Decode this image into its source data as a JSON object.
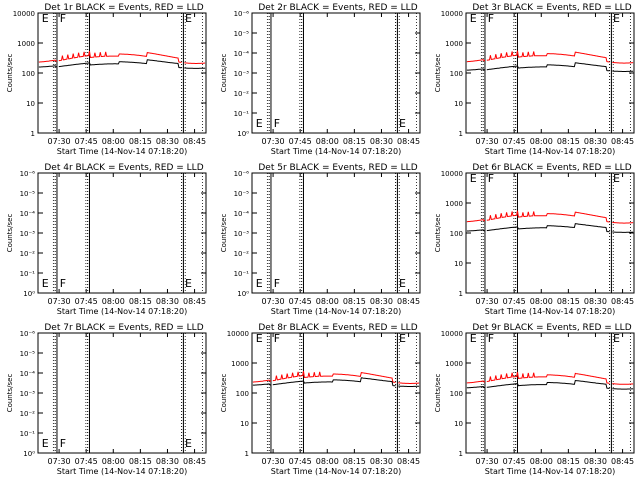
{
  "figure": {
    "background": "#ffffff"
  },
  "colors": {
    "events": "#000000",
    "lld": "#ff0000",
    "axis": "#000000"
  },
  "chart_data": [
    {
      "panel": 1,
      "type": "line",
      "title": "Det 1r BLACK = Events, RED = LLD",
      "ylabel": "Counts/sec",
      "xlabel": "Start Time (14-Nov-14 07:18:20)",
      "yscale": "log",
      "ylim": [
        1,
        10000
      ],
      "yticks": [
        "1",
        "10",
        "100",
        "1000",
        "10000"
      ],
      "xticks": [
        "07:30",
        "07:45",
        "08:00",
        "08:15",
        "08:30",
        "08:45"
      ],
      "xlim_minutes": [
        0,
        93
      ],
      "flags": [
        "E",
        "F",
        "E"
      ],
      "has_data": true,
      "lld_level": 320,
      "events_level": 190,
      "spike_segment": 1
    },
    {
      "panel": 2,
      "type": "line",
      "title": "Det 2r BLACK = Events, RED = LLD",
      "ylabel": "Counts/sec",
      "xlabel": "Start Time (14-Nov-14 07:18:20)",
      "yscale": "log",
      "ylim": [
        1,
        1000000
      ],
      "yticks": [
        "10⁰",
        "10⁻¹",
        "10⁻²",
        "10⁻³",
        "10⁻⁴",
        "10⁻⁵",
        "10⁻⁶"
      ],
      "xticks": [
        "07:30",
        "07:45",
        "08:00",
        "08:15",
        "08:30",
        "08:45"
      ],
      "xlim_minutes": [
        0,
        93
      ],
      "flags": [
        "E",
        "F",
        "E"
      ],
      "has_data": false
    },
    {
      "panel": 3,
      "type": "line",
      "title": "Det 3r BLACK = Events, RED = LLD",
      "ylabel": "Counts/sec",
      "xlabel": "Start Time (14-Nov-14 07:18:20)",
      "yscale": "log",
      "ylim": [
        1,
        10000
      ],
      "yticks": [
        "1",
        "10",
        "100",
        "1000",
        "10000"
      ],
      "xticks": [
        "07:30",
        "07:45",
        "08:00",
        "08:15",
        "08:30",
        "08:45"
      ],
      "xlim_minutes": [
        0,
        93
      ],
      "flags": [
        "E",
        "F",
        "E"
      ],
      "has_data": true,
      "lld_level": 330,
      "events_level": 150,
      "spike_segment": 1
    },
    {
      "panel": 4,
      "type": "line",
      "title": "Det 4r BLACK = Events, RED = LLD",
      "ylabel": "Counts/sec",
      "xlabel": "Start Time (14-Nov-14 07:18:20)",
      "yscale": "log",
      "ylim": [
        1,
        1000000
      ],
      "yticks": [
        "10⁰",
        "10⁻¹",
        "10⁻²",
        "10⁻³",
        "10⁻⁴",
        "10⁻⁵",
        "10⁻⁶"
      ],
      "xticks": [
        "07:30",
        "07:45",
        "08:00",
        "08:15",
        "08:30",
        "08:45"
      ],
      "xlim_minutes": [
        0,
        93
      ],
      "flags": [
        "E",
        "F",
        "E"
      ],
      "has_data": false
    },
    {
      "panel": 5,
      "type": "line",
      "title": "Det 5r BLACK = Events, RED = LLD",
      "ylabel": "Counts/sec",
      "xlabel": "Start Time (14-Nov-14 07:18:20)",
      "yscale": "log",
      "ylim": [
        1,
        1000000
      ],
      "yticks": [
        "10⁰",
        "10⁻¹",
        "10⁻²",
        "10⁻³",
        "10⁻⁴",
        "10⁻⁵",
        "10⁻⁶"
      ],
      "xticks": [
        "07:30",
        "07:45",
        "08:00",
        "08:15",
        "08:30",
        "08:45"
      ],
      "xlim_minutes": [
        0,
        93
      ],
      "flags": [
        "E",
        "F",
        "E"
      ],
      "has_data": false
    },
    {
      "panel": 6,
      "type": "line",
      "title": "Det 6r BLACK = Events, RED = LLD",
      "ylabel": "Counts/sec",
      "xlabel": "Start Time (14-Nov-14 07:18:20)",
      "yscale": "log",
      "ylim": [
        1,
        10000
      ],
      "yticks": [
        "1",
        "10",
        "100",
        "1000",
        "10000"
      ],
      "xticks": [
        "07:30",
        "07:45",
        "08:00",
        "08:15",
        "08:30",
        "08:45"
      ],
      "xlim_minutes": [
        0,
        93
      ],
      "flags": [
        "E",
        "F",
        "E"
      ],
      "has_data": true,
      "lld_level": 330,
      "events_level": 140,
      "spike_segment": 1
    },
    {
      "panel": 7,
      "type": "line",
      "title": "Det 7r BLACK = Events, RED = LLD",
      "ylabel": "Counts/sec",
      "xlabel": "Start Time (14-Nov-14 07:18:20)",
      "yscale": "log",
      "ylim": [
        1,
        1000000
      ],
      "yticks": [
        "10⁰",
        "10⁻¹",
        "10⁻²",
        "10⁻³",
        "10⁻⁴",
        "10⁻⁵",
        "10⁻⁶"
      ],
      "xticks": [
        "07:30",
        "07:45",
        "08:00",
        "08:15",
        "08:30",
        "08:45"
      ],
      "xlim_minutes": [
        0,
        93
      ],
      "flags": [
        "E",
        "F",
        "E"
      ],
      "has_data": false
    },
    {
      "panel": 8,
      "type": "line",
      "title": "Det 8r BLACK = Events, RED = LLD",
      "ylabel": "Counts/sec",
      "xlabel": "Start Time (14-Nov-14 07:18:20)",
      "yscale": "log",
      "ylim": [
        1,
        10000
      ],
      "yticks": [
        "1",
        "10",
        "100",
        "1000",
        "10000"
      ],
      "xticks": [
        "07:30",
        "07:45",
        "08:00",
        "08:15",
        "08:30",
        "08:45"
      ],
      "xlim_minutes": [
        0,
        93
      ],
      "flags": [
        "E",
        "F",
        "E"
      ],
      "has_data": true,
      "lld_level": 320,
      "events_level": 220,
      "spike_segment": 1
    },
    {
      "panel": 9,
      "type": "line",
      "title": "Det 9r BLACK = Events, RED = LLD",
      "ylabel": "Counts/sec",
      "xlabel": "Start Time (14-Nov-14 07:18:20)",
      "yscale": "log",
      "ylim": [
        1,
        10000
      ],
      "yticks": [
        "1",
        "10",
        "100",
        "1000",
        "10000"
      ],
      "xticks": [
        "07:30",
        "07:45",
        "08:00",
        "08:15",
        "08:30",
        "08:45"
      ],
      "xlim_minutes": [
        0,
        93
      ],
      "flags": [
        "E",
        "F",
        "E"
      ],
      "has_data": true,
      "lld_level": 300,
      "events_level": 180,
      "spike_segment": 1
    }
  ]
}
